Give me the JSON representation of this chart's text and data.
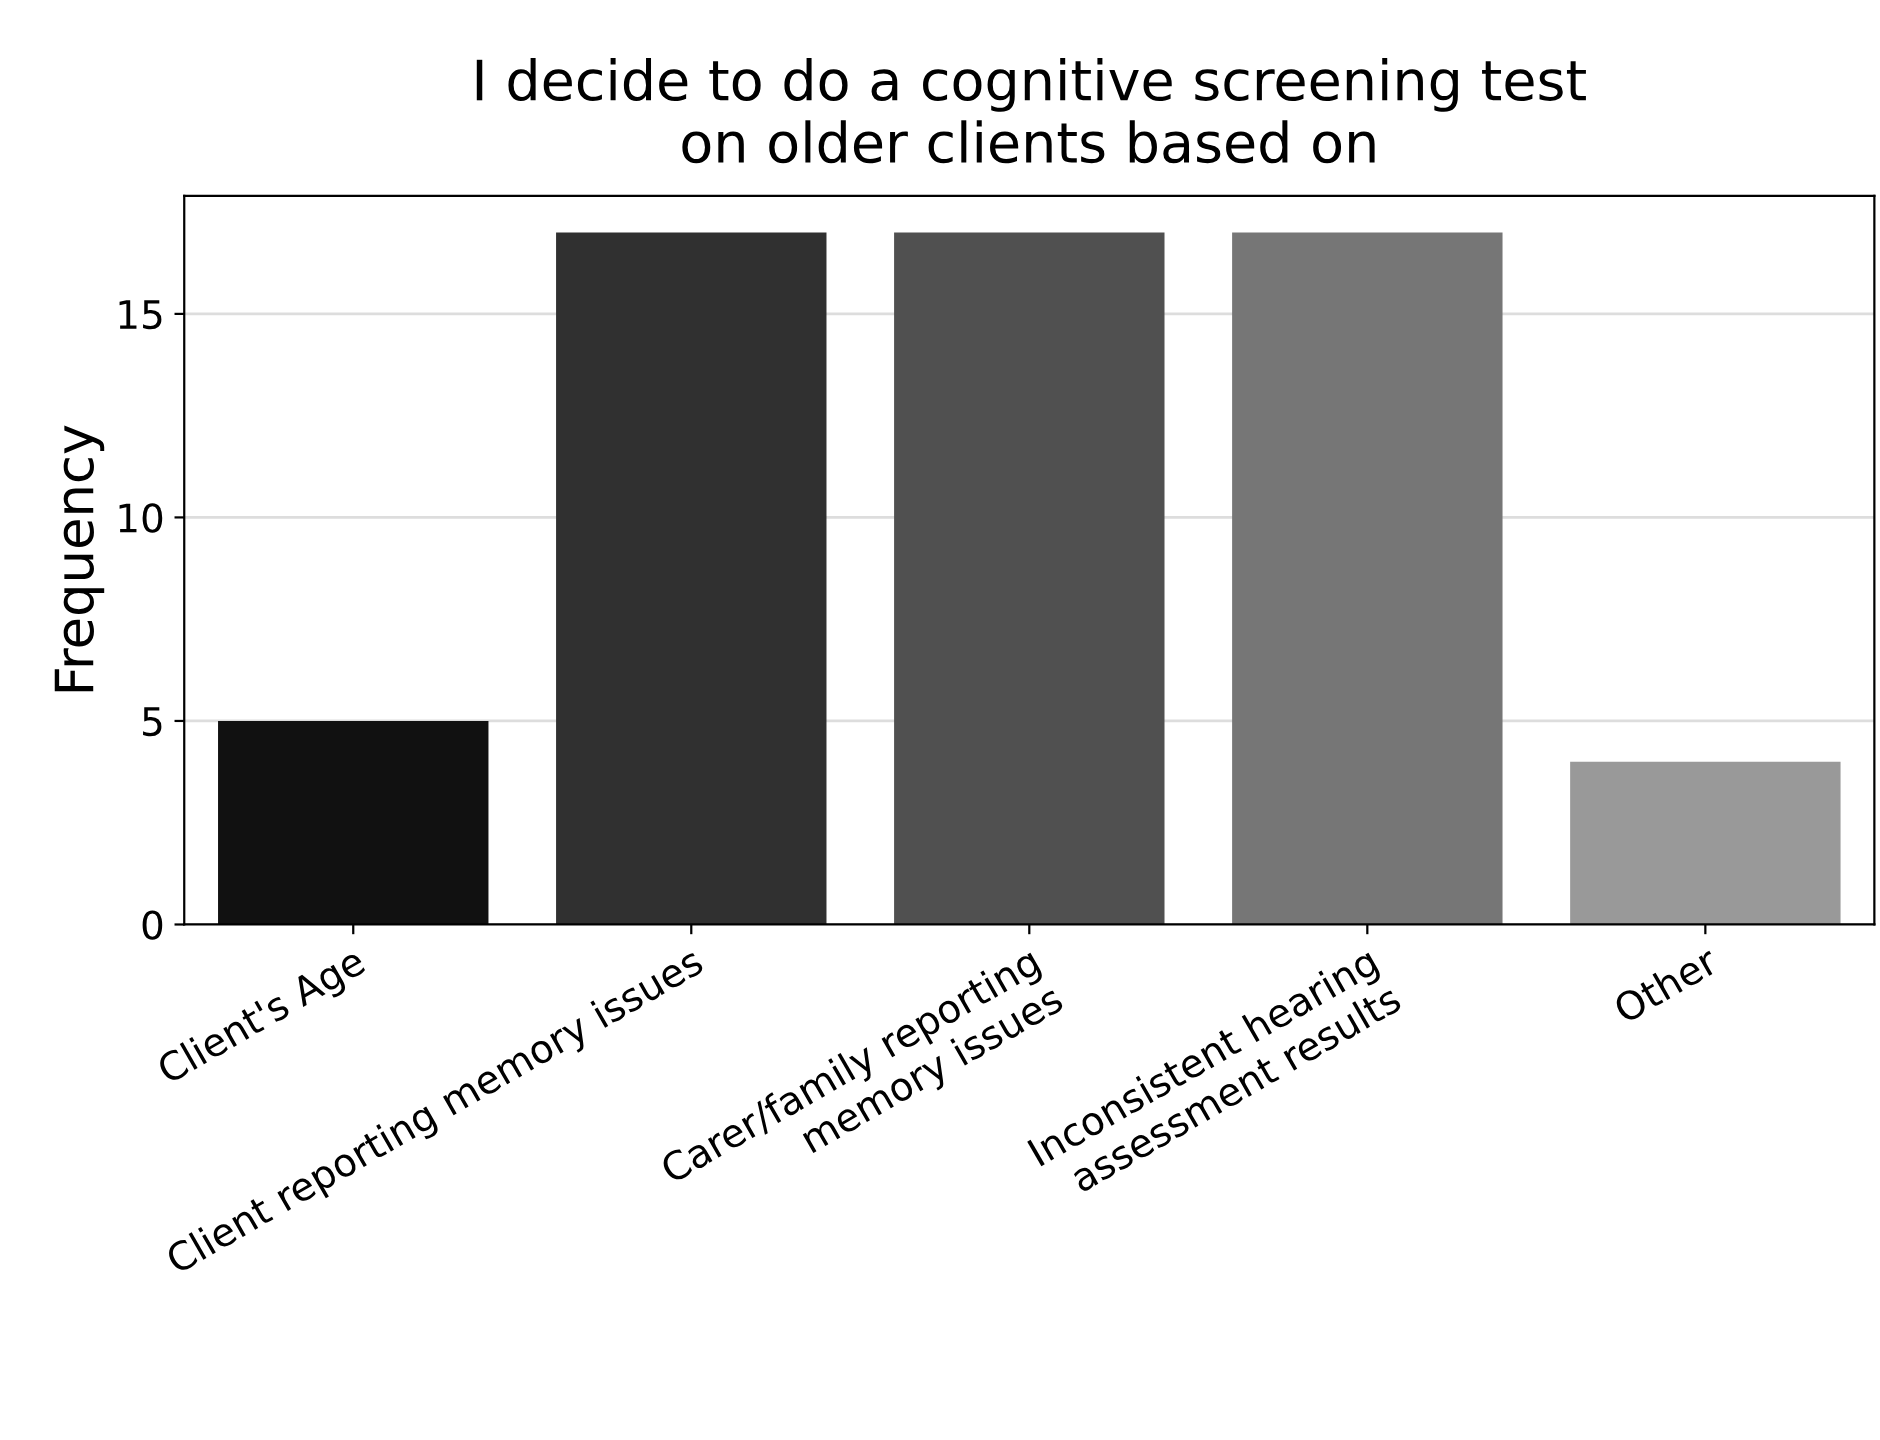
{
  "chart_data": {
    "type": "bar",
    "title": "I decide to do a cognitive screening test\non older clients based on",
    "ylabel": "Frequency",
    "categories": [
      "Client's Age",
      "Client reporting memory issues",
      "Carer/family reporting\nmemory issues",
      "Inconsistent hearing\nassessment results",
      "Other"
    ],
    "values": [
      5,
      17,
      17,
      17,
      4
    ],
    "colors": [
      "#111111",
      "#303030",
      "#505050",
      "#767676",
      "#999999"
    ],
    "ylim": [
      0,
      17.9
    ],
    "yticks": [
      0,
      5,
      10,
      15
    ],
    "grid": "y"
  }
}
